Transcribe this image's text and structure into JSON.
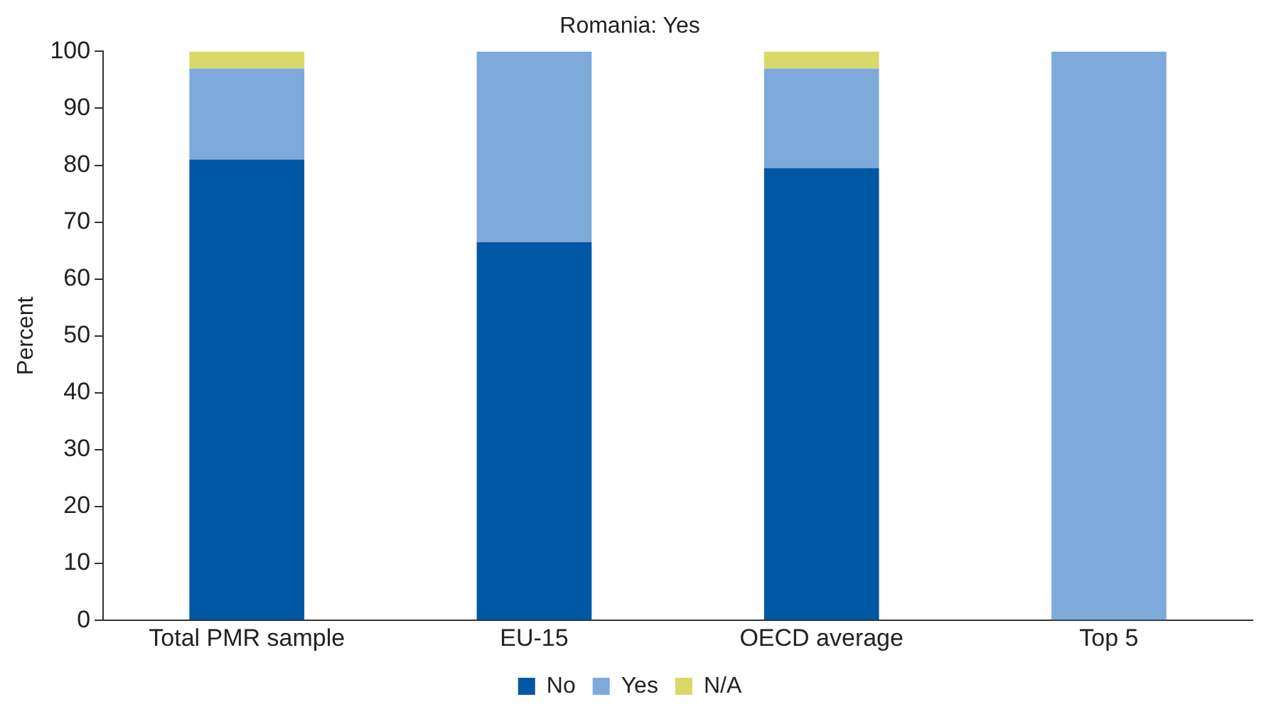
{
  "chart_data": {
    "type": "bar",
    "stacked": true,
    "title": "Romania: Yes",
    "ylabel": "Percent",
    "categories": [
      "Total PMR sample",
      "EU-15",
      "OECD average",
      "Top 5"
    ],
    "series": [
      {
        "name": "No",
        "color": "#0057a3",
        "values": [
          81,
          66.5,
          79.5,
          0
        ]
      },
      {
        "name": "Yes",
        "color": "#7eaadb",
        "values": [
          16,
          33.5,
          17.5,
          100
        ]
      },
      {
        "name": "N/A",
        "color": "#d9d96a",
        "values": [
          3,
          0,
          3,
          0
        ]
      }
    ],
    "ylim": [
      0,
      100
    ],
    "yticks": [
      0,
      10,
      20,
      30,
      40,
      50,
      60,
      70,
      80,
      90,
      100
    ],
    "grid": false,
    "legend": "bottom"
  }
}
